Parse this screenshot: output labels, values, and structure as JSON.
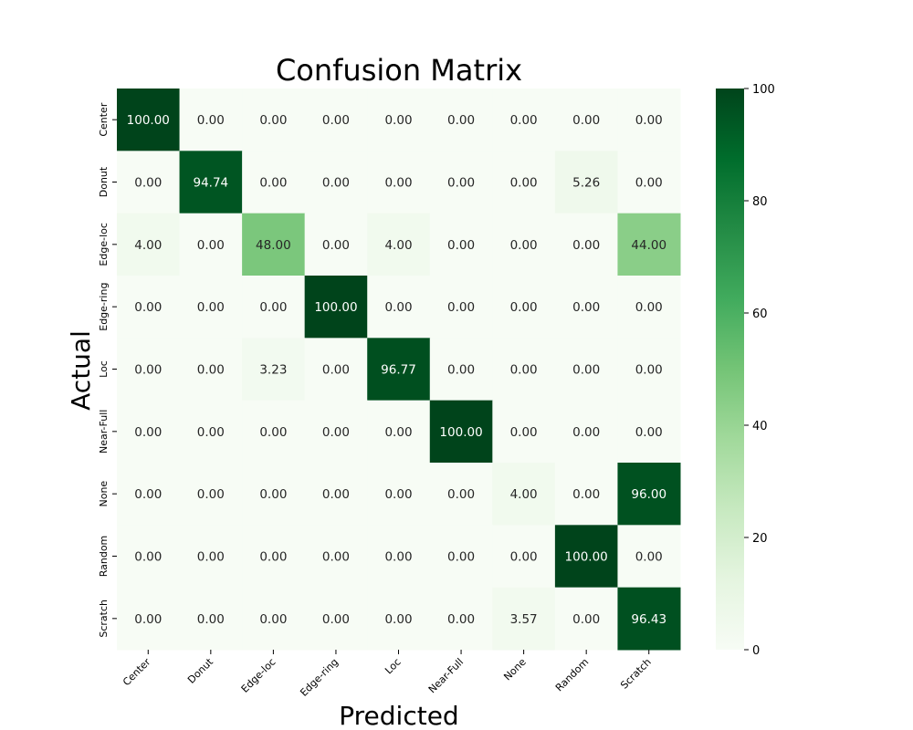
{
  "chart_data": {
    "type": "heatmap",
    "title": "Confusion Matrix",
    "xlabel": "Predicted",
    "ylabel": "Actual",
    "x_categories": [
      "Center",
      "Donut",
      "Edge-loc",
      "Edge-ring",
      "Loc",
      "Near-Full",
      "None",
      "Random",
      "Scratch"
    ],
    "y_categories": [
      "Center",
      "Donut",
      "Edge-loc",
      "Edge-ring",
      "Loc",
      "Near-Full",
      "None",
      "Random",
      "Scratch"
    ],
    "values": [
      [
        100.0,
        0.0,
        0.0,
        0.0,
        0.0,
        0.0,
        0.0,
        0.0,
        0.0
      ],
      [
        0.0,
        94.74,
        0.0,
        0.0,
        0.0,
        0.0,
        0.0,
        5.26,
        0.0
      ],
      [
        4.0,
        0.0,
        48.0,
        0.0,
        4.0,
        0.0,
        0.0,
        0.0,
        44.0
      ],
      [
        0.0,
        0.0,
        0.0,
        100.0,
        0.0,
        0.0,
        0.0,
        0.0,
        0.0
      ],
      [
        0.0,
        0.0,
        3.23,
        0.0,
        96.77,
        0.0,
        0.0,
        0.0,
        0.0
      ],
      [
        0.0,
        0.0,
        0.0,
        0.0,
        0.0,
        100.0,
        0.0,
        0.0,
        0.0
      ],
      [
        0.0,
        0.0,
        0.0,
        0.0,
        0.0,
        0.0,
        4.0,
        0.0,
        96.0
      ],
      [
        0.0,
        0.0,
        0.0,
        0.0,
        0.0,
        0.0,
        0.0,
        100.0,
        0.0
      ],
      [
        0.0,
        0.0,
        0.0,
        0.0,
        0.0,
        0.0,
        3.57,
        0.0,
        96.43
      ]
    ],
    "value_format": "2 decimals",
    "colormap": "Greens",
    "colorbar": {
      "range": [
        0,
        100
      ],
      "ticks": [
        "0",
        "20",
        "40",
        "60",
        "80",
        "100"
      ],
      "placement": "right"
    }
  }
}
